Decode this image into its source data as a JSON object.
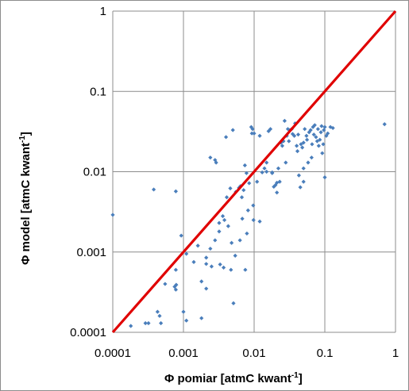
{
  "chart_data": {
    "type": "scatter",
    "title": "",
    "xlabel": "Φ pomiar    [atmC kwant",
    "xlabel_sup": "-1",
    "xlabel_end": "]",
    "ylabel": "Φ model       [atmC kwant",
    "ylabel_sup": "-1",
    "ylabel_end": "]",
    "x_scale": "log",
    "y_scale": "log",
    "xlim": [
      0.0001,
      1
    ],
    "ylim": [
      0.0001,
      1
    ],
    "grid": true,
    "legend": "none",
    "x_ticks": [
      "0.0001",
      "0.001",
      "0.01",
      "0.1",
      "1"
    ],
    "y_ticks": [
      "0.0001",
      "0.001",
      "0.01",
      "0.1",
      "1"
    ],
    "point_color": "#4a7ebb",
    "line_color": "#e00000",
    "reference_line": {
      "name": "",
      "x": [
        0.0001,
        1
      ],
      "y": [
        0.0001,
        1
      ]
    },
    "series": [
      {
        "name": "",
        "points": [
          [
            0.0001,
            0.0029
          ],
          [
            0.00018,
            0.00012
          ],
          [
            0.00029,
            0.00013
          ],
          [
            0.00032,
            0.00013
          ],
          [
            0.00038,
            0.006
          ],
          [
            0.00043,
            0.00018
          ],
          [
            0.00046,
            0.00016
          ],
          [
            0.00048,
            0.00013
          ],
          [
            0.00055,
            0.0004
          ],
          [
            0.00075,
            0.00037
          ],
          [
            0.00078,
            0.00034
          ],
          [
            0.00079,
            0.00039
          ],
          [
            0.00078,
            0.0006
          ],
          [
            0.00078,
            0.0057
          ],
          [
            0.00093,
            0.0016
          ],
          [
            0.001,
            0.00018
          ],
          [
            0.0011,
            0.00095
          ],
          [
            0.0011,
            0.00014
          ],
          [
            0.0014,
            0.00075
          ],
          [
            0.0016,
            0.0012
          ],
          [
            0.0018,
            0.00015
          ],
          [
            0.0018,
            0.00043
          ],
          [
            0.0021,
            0.00071
          ],
          [
            0.0021,
            0.00085
          ],
          [
            0.0021,
            0.00035
          ],
          [
            0.0024,
            0.015
          ],
          [
            0.0024,
            0.0011
          ],
          [
            0.0025,
            0.00066
          ],
          [
            0.0028,
            0.014
          ],
          [
            0.0028,
            0.0014
          ],
          [
            0.0029,
            0.013
          ],
          [
            0.0032,
            0.0023
          ],
          [
            0.0032,
            0.0018
          ],
          [
            0.0033,
            0.0007
          ],
          [
            0.0036,
            0.0028
          ],
          [
            0.0037,
            0.00064
          ],
          [
            0.0038,
            0.0025
          ],
          [
            0.004,
            0.027
          ],
          [
            0.0041,
            0.0048
          ],
          [
            0.0043,
            0.0021
          ],
          [
            0.0046,
            0.0062
          ],
          [
            0.0047,
            0.0006
          ],
          [
            0.0048,
            0.0013
          ],
          [
            0.005,
            0.033
          ],
          [
            0.0051,
            0.00023
          ],
          [
            0.0054,
            0.0009
          ],
          [
            0.0055,
            0.0056
          ],
          [
            0.0061,
            0.0063
          ],
          [
            0.0063,
            0.0014
          ],
          [
            0.0064,
            0.0066
          ],
          [
            0.0067,
            0.0048
          ],
          [
            0.0068,
            0.0026
          ],
          [
            0.0071,
            0.0059
          ],
          [
            0.0074,
            0.012
          ],
          [
            0.0075,
            0.0006
          ],
          [
            0.0078,
            0.0096
          ],
          [
            0.0079,
            0.0017
          ],
          [
            0.0082,
            0.0033
          ],
          [
            0.0085,
            0.0072
          ],
          [
            0.0091,
            0.036
          ],
          [
            0.0093,
            0.03
          ],
          [
            0.0095,
            0.034
          ],
          [
            0.0097,
            0.0038
          ],
          [
            0.0098,
            0.0025
          ],
          [
            0.01,
            0.03
          ],
          [
            0.011,
            0.0075
          ],
          [
            0.012,
            0.0024
          ],
          [
            0.012,
            0.028
          ],
          [
            0.013,
            0.0098
          ],
          [
            0.014,
            0.011
          ],
          [
            0.015,
            0.01
          ],
          [
            0.015,
            0.013
          ],
          [
            0.016,
            0.032
          ],
          [
            0.017,
            0.034
          ],
          [
            0.018,
            0.0096
          ],
          [
            0.018,
            0.0098
          ],
          [
            0.019,
            0.0065
          ],
          [
            0.02,
            0.0068
          ],
          [
            0.021,
            0.0073
          ],
          [
            0.021,
            0.0055
          ],
          [
            0.022,
            0.011
          ],
          [
            0.023,
            0.0075
          ],
          [
            0.024,
            0.023
          ],
          [
            0.025,
            0.021
          ],
          [
            0.026,
            0.024
          ],
          [
            0.027,
            0.043
          ],
          [
            0.028,
            0.013
          ],
          [
            0.029,
            0.028
          ],
          [
            0.03,
            0.034
          ],
          [
            0.031,
            0.024
          ],
          [
            0.032,
            0.033
          ],
          [
            0.034,
            0.034
          ],
          [
            0.035,
            0.0295
          ],
          [
            0.037,
            0.028
          ],
          [
            0.038,
            0.04
          ],
          [
            0.04,
            0.021
          ],
          [
            0.041,
            0.018
          ],
          [
            0.042,
            0.029
          ],
          [
            0.043,
            0.009
          ],
          [
            0.045,
            0.0064
          ],
          [
            0.046,
            0.022
          ],
          [
            0.048,
            0.02
          ],
          [
            0.05,
            0.023
          ],
          [
            0.05,
            0.011
          ],
          [
            0.05,
            0.0075
          ],
          [
            0.052,
            0.034
          ],
          [
            0.055,
            0.028
          ],
          [
            0.056,
            0.025
          ],
          [
            0.058,
            0.013
          ],
          [
            0.06,
            0.031
          ],
          [
            0.063,
            0.033
          ],
          [
            0.065,
            0.015
          ],
          [
            0.066,
            0.022
          ],
          [
            0.068,
            0.036
          ],
          [
            0.07,
            0.029
          ],
          [
            0.072,
            0.038
          ],
          [
            0.075,
            0.027
          ],
          [
            0.078,
            0.024
          ],
          [
            0.08,
            0.034
          ],
          [
            0.082,
            0.021
          ],
          [
            0.085,
            0.025
          ],
          [
            0.088,
            0.031
          ],
          [
            0.09,
            0.037
          ],
          [
            0.092,
            0.017
          ],
          [
            0.095,
            0.022
          ],
          [
            0.097,
            0.033
          ],
          [
            0.1,
            0.0085
          ],
          [
            0.1,
            0.036
          ],
          [
            0.105,
            0.028
          ],
          [
            0.11,
            0.03
          ],
          [
            0.12,
            0.036
          ],
          [
            0.13,
            0.035
          ],
          [
            0.7,
            0.039
          ]
        ]
      }
    ]
  }
}
